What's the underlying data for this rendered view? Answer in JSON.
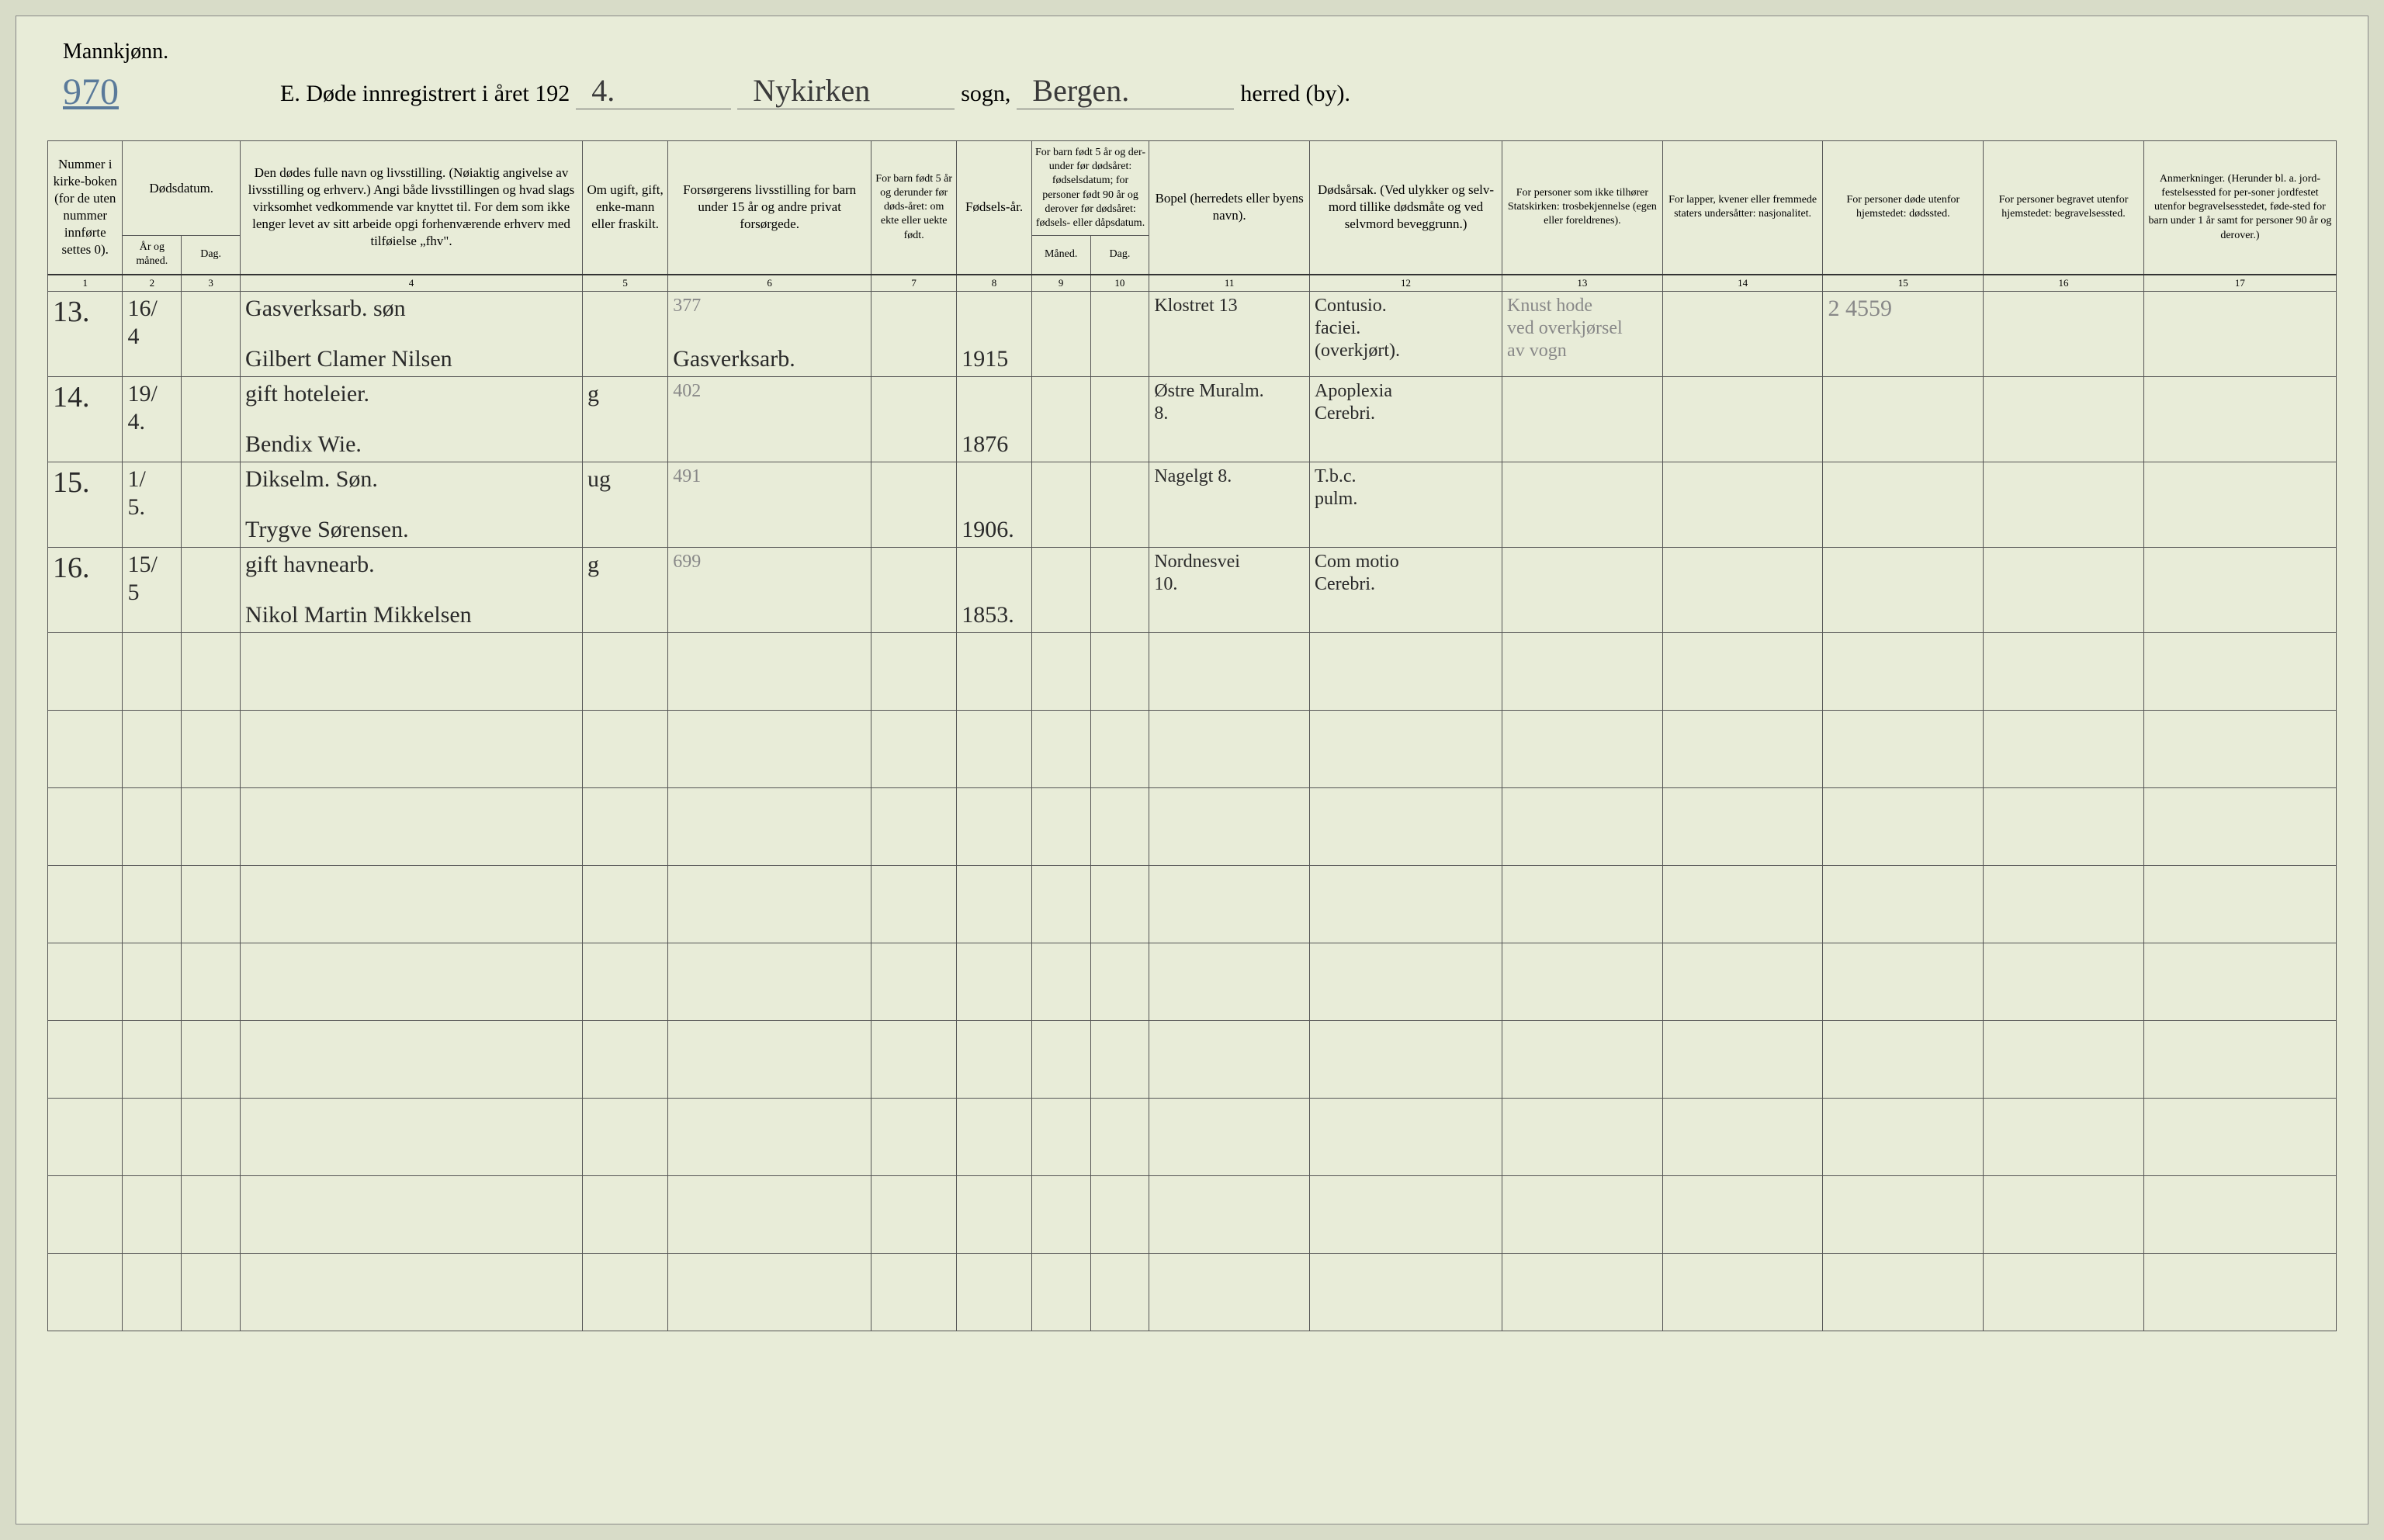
{
  "header": {
    "gender": "Mannkjønn.",
    "page_number": "970",
    "title_prefix": "E.  Døde innregistrert i året 192",
    "year_suffix": "4.",
    "parish_hw": "Nykirken",
    "parish_label": "sogn,",
    "district_hw": "Bergen.",
    "district_label": "herred (by)."
  },
  "columns": {
    "c1": "Nummer i kirke-boken (for de uten nummer innførte settes 0).",
    "c2_top": "Dødsdatum.",
    "c2a": "År og måned.",
    "c2b": "Dag.",
    "c4": "Den dødes fulle navn og livsstilling.\n(Nøiaktig angivelse av livsstilling og erhverv.)\nAngi både livsstillingen og hvad slags virksomhet vedkommende var knyttet til.\nFor dem som ikke lenger levet av sitt arbeide opgi forhenværende erhverv med tilføielse „fhv\".",
    "c5": "Om ugift, gift, enke-mann eller fraskilt.",
    "c6": "Forsørgerens livsstilling\nfor barn under 15 år og andre privat forsørgede.",
    "c7": "For barn født 5 år og derunder før døds-året: om ekte eller uekte født.",
    "c8": "Fødsels-år.",
    "c9_top": "For barn født 5 år og der-under før dødsåret: fødselsdatum; for personer født 90 år og derover før dødsåret: fødsels- eller dåpsdatum.",
    "c9a": "Måned.",
    "c9b": "Dag.",
    "c11": "Bopel\n(herredets eller byens navn).",
    "c12": "Dødsårsak.\n(Ved ulykker og selv-mord tillike dødsmåte og ved selvmord beveggrunn.)",
    "c13": "For personer som ikke tilhører Statskirken:\ntrosbekjennelse (egen eller foreldrenes).",
    "c14": "For lapper, kvener eller fremmede staters undersåtter:\nnasjonalitet.",
    "c15": "For personer døde utenfor hjemstedet:\ndødssted.",
    "c16": "For personer begravet utenfor hjemstedet:\nbegravelsessted.",
    "c17": "Anmerkninger.\n(Herunder bl. a. jord-festelsessted for per-soner jordfestet utenfor begravelsesstedet, føde-sted for barn under 1 år samt for personer 90 år og derover.)"
  },
  "col_nums": [
    "1",
    "2",
    "3",
    "4",
    "5",
    "6",
    "7",
    "8",
    "9",
    "10",
    "11",
    "12",
    "13",
    "14",
    "15",
    "16",
    "17"
  ],
  "rows": [
    {
      "num": "13.",
      "date_mo": "16/\n4",
      "date_day": "",
      "name_line1": "Gasverksarb. søn",
      "name_line2": "Gilbert Clamer Nilsen",
      "marital": "",
      "provider_top": "377",
      "provider": "Gasverksarb.",
      "birth_year": "1915",
      "residence": "Klostret 13",
      "cause": "Contusio.\nfaciei.\n(overkjørt).",
      "col13": "Knust hode\nved overkjørsel\nav vogn",
      "col15": "2 4559"
    },
    {
      "num": "14.",
      "date_mo": "19/\n4.",
      "date_day": "",
      "name_line1": "gift hoteleier.",
      "name_line2": "Bendix Wie.",
      "marital": "g",
      "provider_top": "402",
      "provider": "",
      "birth_year": "1876",
      "residence": "Østre Muralm.\n8.",
      "cause": "Apoplexia\nCerebri.",
      "col13": "",
      "col15": ""
    },
    {
      "num": "15.",
      "date_mo": "1/\n5.",
      "date_day": "",
      "name_line1": "Dikselm. Søn.",
      "name_line2": "Trygve Sørensen.",
      "marital": "ug",
      "provider_top": "491",
      "provider": "",
      "birth_year": "1906.",
      "residence": "Nagelgt 8.",
      "cause": "T.b.c.\npulm.",
      "col13": "",
      "col15": ""
    },
    {
      "num": "16.",
      "date_mo": "15/\n5",
      "date_day": "",
      "name_line1": "gift havnearb.",
      "name_line2": "Nikol Martin Mikkelsen",
      "marital": "g",
      "provider_top": "699",
      "provider": "",
      "birth_year": "1853.",
      "residence": "Nordnesvei\n10.",
      "cause": "Com motio\nCerebri.",
      "col13": "",
      "col15": ""
    }
  ],
  "styling": {
    "background_color": "#e8ecd8",
    "border_color": "#555555",
    "printed_text_color": "#222222",
    "handwritten_color": "#2a2a2a",
    "pencil_color": "#888888",
    "page_number_color": "#5a7a9a",
    "header_fontsize": 30,
    "cell_fontsize": 18,
    "handwriting_fontsize": 30
  }
}
